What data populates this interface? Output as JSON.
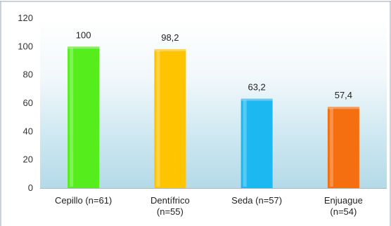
{
  "chart_data": {
    "type": "bar",
    "categories": [
      [
        "Cepillo (n=61)"
      ],
      [
        "Dentífrico",
        "(n=55)"
      ],
      [
        "Seda (n=57)"
      ],
      [
        "Enjuague",
        "(n=54)"
      ]
    ],
    "values": [
      100,
      98.2,
      63.2,
      57.4
    ],
    "data_labels": [
      "100",
      "98,2",
      "63,2",
      "57,4"
    ],
    "colors": [
      "#55ee1c",
      "#ffc400",
      "#1cb8f2",
      "#f56f11"
    ],
    "ylim": [
      0,
      120
    ],
    "yticks": [
      0,
      20,
      40,
      60,
      80,
      100,
      120
    ],
    "grid": false,
    "title": "",
    "xlabel": "",
    "ylabel": ""
  }
}
